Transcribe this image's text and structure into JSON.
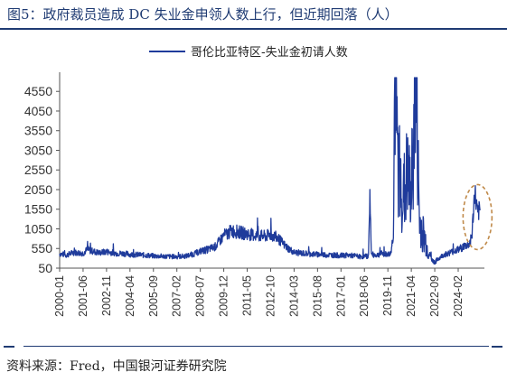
{
  "figure": {
    "title": "图5：政府裁员造成 DC 失业金申领人数上行，但近期回落（人）",
    "source": "资料来源：Fred，中国银河证券研究院"
  },
  "chart_data": {
    "type": "line",
    "legend_position": "top-center",
    "grid": false,
    "ylim": [
      50,
      4900
    ],
    "yticks": [
      50,
      550,
      1050,
      1550,
      2050,
      2550,
      3050,
      3550,
      4050,
      4550
    ],
    "xticks": [
      "2000-01",
      "2001-06",
      "2002-11",
      "2004-04",
      "2005-09",
      "2007-02",
      "2008-07",
      "2009-12",
      "2011-05",
      "2012-10",
      "2014-03",
      "2015-08",
      "2017-01",
      "2018-06",
      "2019-11",
      "2021-04",
      "2022-09",
      "2024-02"
    ],
    "series": [
      {
        "name": "哥伦比亚特区-失业金初请人数",
        "color": "#1f3b9b",
        "points": [
          [
            "2000-01",
            420
          ],
          [
            "2000-06",
            380
          ],
          [
            "2000-11",
            450
          ],
          [
            "2001-06",
            430
          ],
          [
            "2001-09",
            520
          ],
          [
            "2002-01",
            480
          ],
          [
            "2002-06",
            440
          ],
          [
            "2002-11",
            470
          ],
          [
            "2003-06",
            430
          ],
          [
            "2004-01",
            420
          ],
          [
            "2004-04",
            400
          ],
          [
            "2004-11",
            390
          ],
          [
            "2005-06",
            370
          ],
          [
            "2005-09",
            360
          ],
          [
            "2006-06",
            350
          ],
          [
            "2007-02",
            340
          ],
          [
            "2007-09",
            360
          ],
          [
            "2008-03",
            420
          ],
          [
            "2008-07",
            480
          ],
          [
            "2008-12",
            520
          ],
          [
            "2009-06",
            600
          ],
          [
            "2009-12",
            880
          ],
          [
            "2010-06",
            1000
          ],
          [
            "2010-12",
            960
          ],
          [
            "2011-05",
            920
          ],
          [
            "2011-12",
            880
          ],
          [
            "2012-06",
            860
          ],
          [
            "2012-10",
            900
          ],
          [
            "2013-03",
            820
          ],
          [
            "2013-09",
            600
          ],
          [
            "2014-03",
            450
          ],
          [
            "2014-09",
            430
          ],
          [
            "2015-03",
            410
          ],
          [
            "2015-08",
            400
          ],
          [
            "2016-03",
            390
          ],
          [
            "2016-09",
            380
          ],
          [
            "2017-01",
            370
          ],
          [
            "2017-06",
            380
          ],
          [
            "2017-12",
            360
          ],
          [
            "2018-03",
            340
          ],
          [
            "2018-06",
            350
          ],
          [
            "2018-09",
            360
          ],
          [
            "2018-10",
            2050
          ],
          [
            "2018-11",
            400
          ],
          [
            "2019-03",
            380
          ],
          [
            "2019-06",
            420
          ],
          [
            "2019-11",
            400
          ],
          [
            "2020-01",
            420
          ],
          [
            "2020-03",
            900
          ],
          [
            "2020-04",
            4900
          ],
          [
            "2020-05",
            3500
          ],
          [
            "2020-07",
            2600
          ],
          [
            "2020-10",
            1800
          ],
          [
            "2021-01",
            2400
          ],
          [
            "2021-04",
            1900
          ],
          [
            "2021-07",
            4900
          ],
          [
            "2021-10",
            1200
          ],
          [
            "2022-01",
            900
          ],
          [
            "2022-04",
            500
          ],
          [
            "2022-07",
            250
          ],
          [
            "2022-09",
            200
          ],
          [
            "2022-12",
            300
          ],
          [
            "2023-03",
            380
          ],
          [
            "2023-06",
            420
          ],
          [
            "2023-09",
            460
          ],
          [
            "2024-02",
            520
          ],
          [
            "2024-06",
            600
          ],
          [
            "2024-10",
            650
          ],
          [
            "2024-12",
            900
          ],
          [
            "2025-02",
            2000
          ],
          [
            "2025-04",
            1400
          ],
          [
            "2025-06",
            1550
          ]
        ]
      }
    ],
    "annotation": "dashed ellipse highlighting the recent 2025 spike"
  }
}
